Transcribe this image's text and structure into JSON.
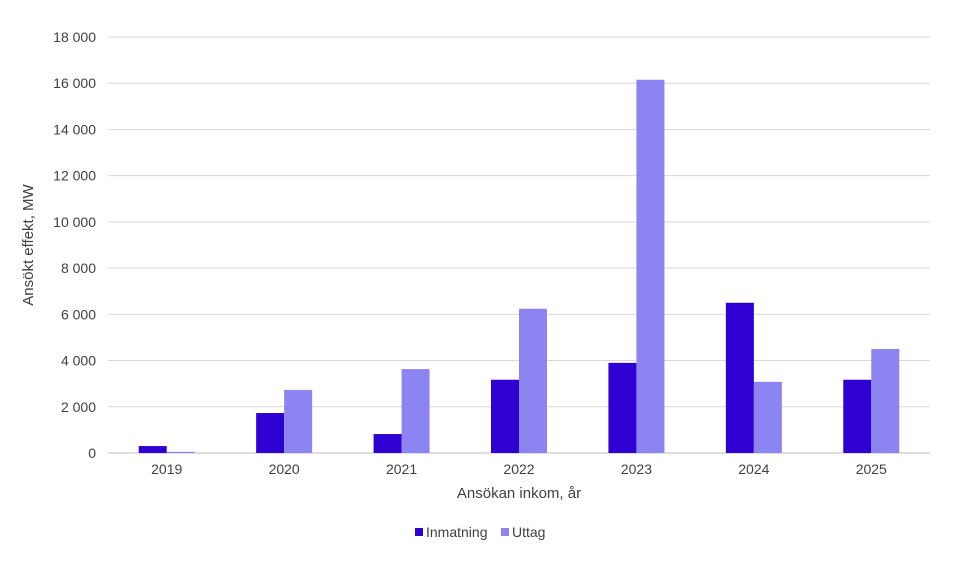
{
  "chart_data": {
    "type": "bar",
    "categories": [
      "2019",
      "2020",
      "2021",
      "2022",
      "2023",
      "2024",
      "2025"
    ],
    "series": [
      {
        "name": "Inmatning",
        "color": "#2e00d1",
        "values": [
          300,
          1730,
          820,
          3170,
          3900,
          6500,
          3170
        ]
      },
      {
        "name": "Uttag",
        "color": "#8c84f0",
        "values": [
          50,
          2730,
          3630,
          6240,
          16150,
          3080,
          4500
        ]
      }
    ],
    "xlabel": "Ansökan inkom, år",
    "ylabel": "Ansökt effekt, MW",
    "ylim": [
      0,
      18000
    ],
    "yticks": [
      0,
      2000,
      4000,
      6000,
      8000,
      10000,
      12000,
      14000,
      16000,
      18000
    ],
    "ytick_labels": [
      "0",
      "2 000",
      "4 000",
      "6 000",
      "8 000",
      "10 000",
      "12 000",
      "14 000",
      "16 000",
      "18 000"
    ],
    "grid": true,
    "legend_position": "bottom"
  }
}
